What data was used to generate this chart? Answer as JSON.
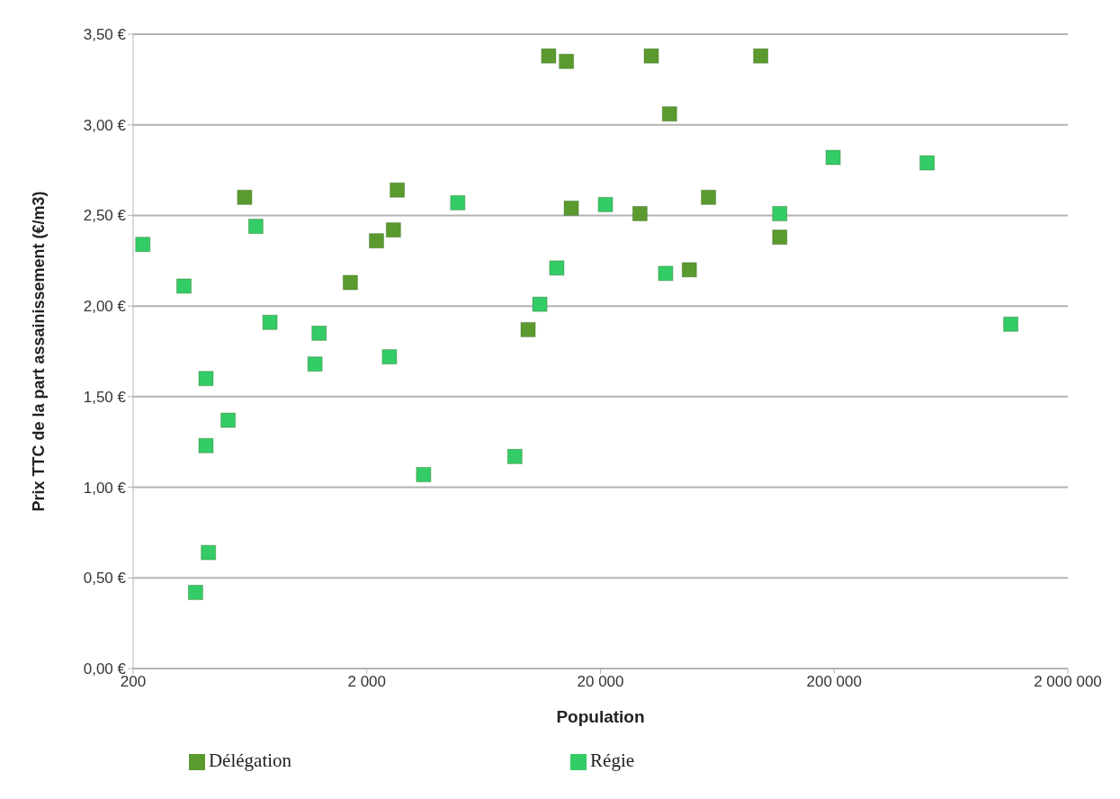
{
  "chart_data": {
    "type": "scatter",
    "xlabel": "Population",
    "ylabel": "Prix TTC de la part assainissement (€/m3)",
    "log": "x",
    "grid": "y",
    "legend": "bottom",
    "marker": "square",
    "xlim": [
      200,
      2000000
    ],
    "xticks": [
      {
        "value": 200,
        "label": "200"
      },
      {
        "value": 2000,
        "label": "2 000"
      },
      {
        "value": 20000,
        "label": "20 000"
      },
      {
        "value": 200000,
        "label": "200 000"
      },
      {
        "value": 2000000,
        "label": "2 000 000"
      }
    ],
    "ylim": [
      0,
      3.5
    ],
    "yticks": [
      {
        "value": 0,
        "label": "0,00 €"
      },
      {
        "value": 0.5,
        "label": "0,50 €"
      },
      {
        "value": 1,
        "label": "1,00 €"
      },
      {
        "value": 1.5,
        "label": "1,50 €"
      },
      {
        "value": 2,
        "label": "2,00 €"
      },
      {
        "value": 2.5,
        "label": "2,50 €"
      },
      {
        "value": 3,
        "label": "3,00 €"
      },
      {
        "value": 3.5,
        "label": "3,50 €"
      }
    ],
    "series": [
      {
        "name": "Régie",
        "color": "#33cc66",
        "x": [
          220,
          330,
          370,
          410,
          410,
          420,
          510,
          670,
          770,
          1200,
          1250,
          2500,
          3500,
          4900,
          8600,
          11000,
          13000,
          21000,
          38000,
          117000,
          198000,
          500000,
          1140000
        ],
        "values": [
          2.34,
          2.11,
          0.42,
          1.23,
          1.6,
          0.64,
          1.37,
          2.44,
          1.91,
          1.68,
          1.85,
          1.72,
          1.07,
          2.57,
          1.17,
          2.01,
          2.21,
          2.56,
          2.18,
          2.51,
          2.82,
          2.79,
          1.9
        ]
      },
      {
        "name": "Délégation",
        "color": "#5b9a2e",
        "x": [
          600,
          1700,
          2200,
          2600,
          2700,
          9800,
          12000,
          14300,
          15000,
          29500,
          33000,
          39500,
          48000,
          58000,
          97000,
          117000
        ],
        "values": [
          2.6,
          2.13,
          2.36,
          2.42,
          2.64,
          1.87,
          3.38,
          3.35,
          2.54,
          2.51,
          3.38,
          3.06,
          2.2,
          2.6,
          3.38,
          2.38
        ]
      }
    ]
  }
}
